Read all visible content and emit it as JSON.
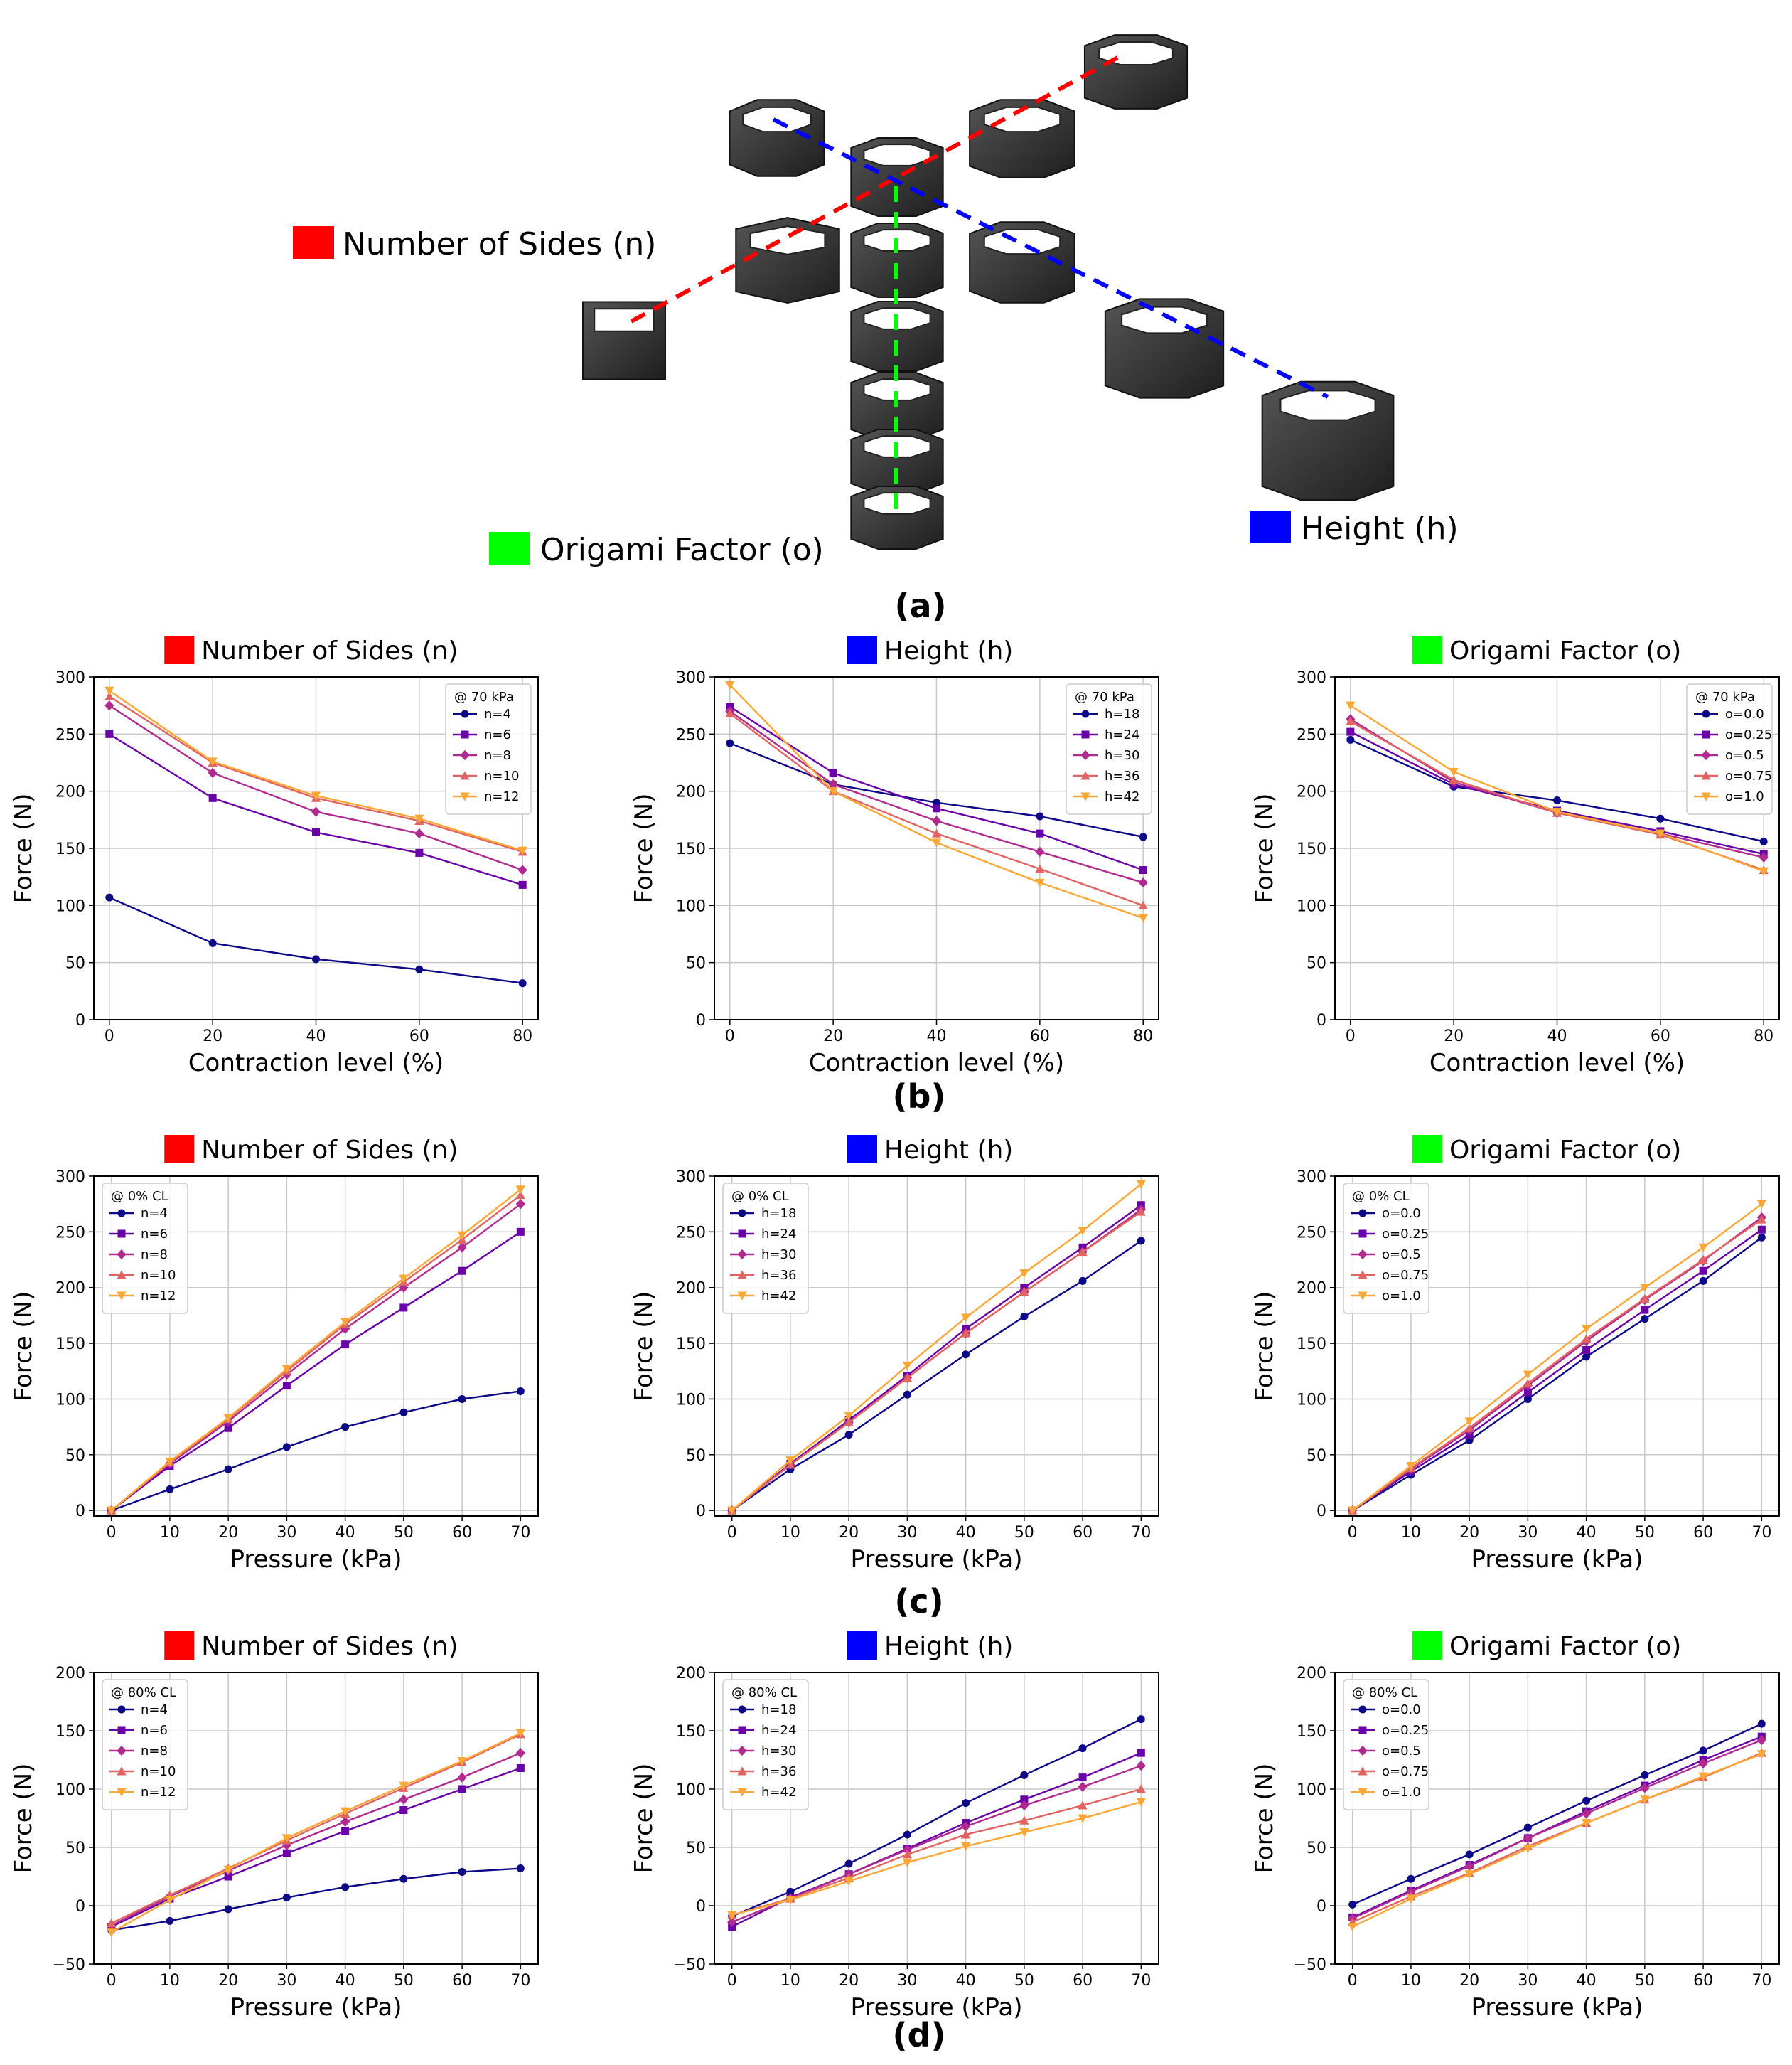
{
  "colors": {
    "n": "#ff0000",
    "h": "#0000ff",
    "o": "#00ff00",
    "series": [
      "#0d0887",
      "#6a00a8",
      "#b12a90",
      "#e16462",
      "#fca636"
    ],
    "grid": "#c8c8c8",
    "prism": "#3a3a3a"
  },
  "diagram": {
    "labels": {
      "n": "Number of Sides (n)",
      "o": "Origami Factor (o)",
      "h": "Height (h)"
    }
  },
  "panel_labels": {
    "a": "(a)",
    "b": "(b)",
    "c": "(c)",
    "d": "(d)"
  },
  "chart_data": [
    {
      "id": "b1",
      "type": "line",
      "title": "Number of Sides (n)",
      "title_color": "#ff0000",
      "xlabel": "Contraction level (%)",
      "ylabel": "Force (N)",
      "legend_title": "@ 70 kPa",
      "legend_pos": "top-right",
      "x": [
        0,
        20,
        40,
        60,
        80
      ],
      "xlim": [
        -3,
        83
      ],
      "ylim": [
        0,
        300
      ],
      "xticks": [
        0,
        20,
        40,
        60,
        80
      ],
      "yticks": [
        0,
        50,
        100,
        150,
        200,
        250,
        300
      ],
      "series": [
        {
          "name": "n=4",
          "values": [
            107,
            67,
            53,
            44,
            32
          ]
        },
        {
          "name": "n=6",
          "values": [
            250,
            194,
            164,
            146,
            118
          ]
        },
        {
          "name": "n=8",
          "values": [
            275,
            216,
            182,
            163,
            131
          ]
        },
        {
          "name": "n=10",
          "values": [
            283,
            225,
            194,
            174,
            147
          ]
        },
        {
          "name": "n=12",
          "values": [
            288,
            226,
            196,
            176,
            148
          ]
        }
      ]
    },
    {
      "id": "b2",
      "type": "line",
      "title": "Height (h)",
      "title_color": "#0000ff",
      "xlabel": "Contraction level (%)",
      "ylabel": "Force (N)",
      "legend_title": "@ 70 kPa",
      "legend_pos": "top-right",
      "x": [
        0,
        20,
        40,
        60,
        80
      ],
      "xlim": [
        -3,
        83
      ],
      "ylim": [
        0,
        300
      ],
      "xticks": [
        0,
        20,
        40,
        60,
        80
      ],
      "yticks": [
        0,
        50,
        100,
        150,
        200,
        250,
        300
      ],
      "series": [
        {
          "name": "h=18",
          "values": [
            242,
            206,
            190,
            178,
            160
          ]
        },
        {
          "name": "h=24",
          "values": [
            274,
            216,
            185,
            163,
            131
          ]
        },
        {
          "name": "h=30",
          "values": [
            270,
            206,
            174,
            147,
            120
          ]
        },
        {
          "name": "h=36",
          "values": [
            268,
            200,
            163,
            132,
            100
          ]
        },
        {
          "name": "h=42",
          "values": [
            293,
            200,
            155,
            120,
            89
          ]
        }
      ]
    },
    {
      "id": "b3",
      "type": "line",
      "title": "Origami Factor (o)",
      "title_color": "#00ff00",
      "xlabel": "Contraction level (%)",
      "ylabel": "Force (N)",
      "legend_title": "@ 70 kPa",
      "legend_pos": "top-right",
      "x": [
        0,
        20,
        40,
        60,
        80
      ],
      "xlim": [
        -3,
        83
      ],
      "ylim": [
        0,
        300
      ],
      "xticks": [
        0,
        20,
        40,
        60,
        80
      ],
      "yticks": [
        0,
        50,
        100,
        150,
        200,
        250,
        300
      ],
      "series": [
        {
          "name": "o=0.0",
          "values": [
            245,
            204,
            192,
            176,
            156
          ]
        },
        {
          "name": "o=0.25",
          "values": [
            252,
            206,
            183,
            165,
            145
          ]
        },
        {
          "name": "o=0.5",
          "values": [
            263,
            208,
            181,
            163,
            142
          ]
        },
        {
          "name": "o=0.75",
          "values": [
            261,
            210,
            181,
            162,
            131
          ]
        },
        {
          "name": "o=1.0",
          "values": [
            275,
            217,
            182,
            163,
            130
          ]
        }
      ]
    },
    {
      "id": "c1",
      "type": "line",
      "title": "Number of Sides (n)",
      "title_color": "#ff0000",
      "xlabel": "Pressure (kPa)",
      "ylabel": "Force (N)",
      "legend_title": "@ 0% CL",
      "legend_pos": "top-left",
      "x": [
        0,
        10,
        20,
        30,
        40,
        50,
        60,
        70
      ],
      "xlim": [
        -3,
        73
      ],
      "ylim": [
        -5,
        300
      ],
      "xticks": [
        0,
        10,
        20,
        30,
        40,
        50,
        60,
        70
      ],
      "yticks": [
        0,
        50,
        100,
        150,
        200,
        250,
        300
      ],
      "series": [
        {
          "name": "n=4",
          "values": [
            0,
            19,
            37,
            57,
            75,
            88,
            100,
            107
          ]
        },
        {
          "name": "n=6",
          "values": [
            0,
            40,
            74,
            112,
            149,
            182,
            215,
            250
          ]
        },
        {
          "name": "n=8",
          "values": [
            0,
            42,
            80,
            122,
            163,
            200,
            236,
            275
          ]
        },
        {
          "name": "n=10",
          "values": [
            0,
            43,
            82,
            125,
            167,
            205,
            243,
            283
          ]
        },
        {
          "name": "n=12",
          "values": [
            0,
            44,
            83,
            127,
            169,
            208,
            247,
            288
          ]
        }
      ]
    },
    {
      "id": "c2",
      "type": "line",
      "title": "Height (h)",
      "title_color": "#0000ff",
      "xlabel": "Pressure (kPa)",
      "ylabel": "Force (N)",
      "legend_title": "@ 0% CL",
      "legend_pos": "top-left",
      "x": [
        0,
        10,
        20,
        30,
        40,
        50,
        60,
        70
      ],
      "xlim": [
        -3,
        73
      ],
      "ylim": [
        -5,
        300
      ],
      "xticks": [
        0,
        10,
        20,
        30,
        40,
        50,
        60,
        70
      ],
      "yticks": [
        0,
        50,
        100,
        150,
        200,
        250,
        300
      ],
      "series": [
        {
          "name": "h=18",
          "values": [
            0,
            37,
            68,
            104,
            140,
            174,
            206,
            242
          ]
        },
        {
          "name": "h=24",
          "values": [
            0,
            42,
            81,
            121,
            163,
            200,
            236,
            274
          ]
        },
        {
          "name": "h=30",
          "values": [
            0,
            41,
            79,
            119,
            159,
            196,
            232,
            270
          ]
        },
        {
          "name": "h=36",
          "values": [
            0,
            41,
            79,
            119,
            159,
            196,
            232,
            268
          ]
        },
        {
          "name": "h=42",
          "values": [
            0,
            45,
            85,
            130,
            173,
            213,
            251,
            293
          ]
        }
      ]
    },
    {
      "id": "c3",
      "type": "line",
      "title": "Origami Factor (o)",
      "title_color": "#00ff00",
      "xlabel": "Pressure (kPa)",
      "ylabel": "Force (N)",
      "legend_title": "@ 0% CL",
      "legend_pos": "top-left",
      "x": [
        0,
        10,
        20,
        30,
        40,
        50,
        60,
        70
      ],
      "xlim": [
        -3,
        73
      ],
      "ylim": [
        -5,
        300
      ],
      "xticks": [
        0,
        10,
        20,
        30,
        40,
        50,
        60,
        70
      ],
      "yticks": [
        0,
        50,
        100,
        150,
        200,
        250,
        300
      ],
      "series": [
        {
          "name": "o=0.0",
          "values": [
            0,
            32,
            63,
            100,
            138,
            172,
            206,
            245
          ]
        },
        {
          "name": "o=0.25",
          "values": [
            0,
            35,
            68,
            106,
            144,
            180,
            215,
            252
          ]
        },
        {
          "name": "o=0.5",
          "values": [
            0,
            37,
            72,
            112,
            152,
            189,
            224,
            263
          ]
        },
        {
          "name": "o=0.75",
          "values": [
            0,
            38,
            74,
            114,
            154,
            190,
            225,
            261
          ]
        },
        {
          "name": "o=1.0",
          "values": [
            0,
            40,
            80,
            122,
            163,
            200,
            236,
            275
          ]
        }
      ]
    },
    {
      "id": "d1",
      "type": "line",
      "title": "Number of Sides (n)",
      "title_color": "#ff0000",
      "xlabel": "Pressure (kPa)",
      "ylabel": "Force (N)",
      "legend_title": "@ 80% CL",
      "legend_pos": "top-left",
      "x": [
        0,
        10,
        20,
        30,
        40,
        50,
        60,
        70
      ],
      "xlim": [
        -3,
        73
      ],
      "ylim": [
        -50,
        200
      ],
      "xticks": [
        0,
        10,
        20,
        30,
        40,
        50,
        60,
        70
      ],
      "yticks": [
        -50,
        0,
        50,
        100,
        150,
        200
      ],
      "series": [
        {
          "name": "n=4",
          "values": [
            -21,
            -13,
            -3,
            7,
            16,
            23,
            29,
            32
          ]
        },
        {
          "name": "n=6",
          "values": [
            -18,
            6,
            25,
            45,
            64,
            82,
            100,
            118
          ]
        },
        {
          "name": "n=8",
          "values": [
            -17,
            8,
            30,
            52,
            72,
            91,
            110,
            131
          ]
        },
        {
          "name": "n=10",
          "values": [
            -15,
            9,
            32,
            56,
            79,
            101,
            123,
            147
          ]
        },
        {
          "name": "n=12",
          "values": [
            -23,
            5,
            31,
            58,
            81,
            103,
            124,
            148
          ]
        }
      ]
    },
    {
      "id": "d2",
      "type": "line",
      "title": "Height (h)",
      "title_color": "#0000ff",
      "xlabel": "Pressure (kPa)",
      "ylabel": "Force (N)",
      "legend_title": "@ 80% CL",
      "legend_pos": "top-left",
      "x": [
        0,
        10,
        20,
        30,
        40,
        50,
        60,
        70
      ],
      "xlim": [
        -3,
        73
      ],
      "ylim": [
        -50,
        200
      ],
      "xticks": [
        0,
        10,
        20,
        30,
        40,
        50,
        60,
        70
      ],
      "yticks": [
        -50,
        0,
        50,
        100,
        150,
        200
      ],
      "series": [
        {
          "name": "h=18",
          "values": [
            -9,
            12,
            36,
            61,
            88,
            112,
            135,
            160
          ]
        },
        {
          "name": "h=24",
          "values": [
            -18,
            7,
            27,
            49,
            71,
            91,
            110,
            131
          ]
        },
        {
          "name": "h=30",
          "values": [
            -14,
            6,
            27,
            48,
            68,
            86,
            102,
            120
          ]
        },
        {
          "name": "h=36",
          "values": [
            -8,
            6,
            24,
            44,
            61,
            73,
            86,
            100
          ]
        },
        {
          "name": "h=42",
          "values": [
            -8,
            5,
            21,
            37,
            51,
            63,
            75,
            89
          ]
        }
      ]
    },
    {
      "id": "d3",
      "type": "line",
      "title": "Origami Factor (o)",
      "title_color": "#00ff00",
      "xlabel": "Pressure (kPa)",
      "ylabel": "Force (N)",
      "legend_title": "@ 80% CL",
      "legend_pos": "top-left",
      "x": [
        0,
        10,
        20,
        30,
        40,
        50,
        60,
        70
      ],
      "xlim": [
        -3,
        73
      ],
      "ylim": [
        -50,
        200
      ],
      "xticks": [
        0,
        10,
        20,
        30,
        40,
        50,
        60,
        70
      ],
      "yticks": [
        -50,
        0,
        50,
        100,
        150,
        200
      ],
      "series": [
        {
          "name": "o=0.0",
          "values": [
            1,
            23,
            44,
            67,
            90,
            112,
            133,
            156
          ]
        },
        {
          "name": "o=0.25",
          "values": [
            -10,
            13,
            35,
            58,
            81,
            103,
            125,
            145
          ]
        },
        {
          "name": "o=0.5",
          "values": [
            -11,
            12,
            34,
            58,
            79,
            101,
            122,
            142
          ]
        },
        {
          "name": "o=0.75",
          "values": [
            -14,
            8,
            28,
            51,
            71,
            91,
            110,
            131
          ]
        },
        {
          "name": "o=1.0",
          "values": [
            -18,
            6,
            27,
            49,
            71,
            91,
            111,
            130
          ]
        }
      ]
    }
  ]
}
